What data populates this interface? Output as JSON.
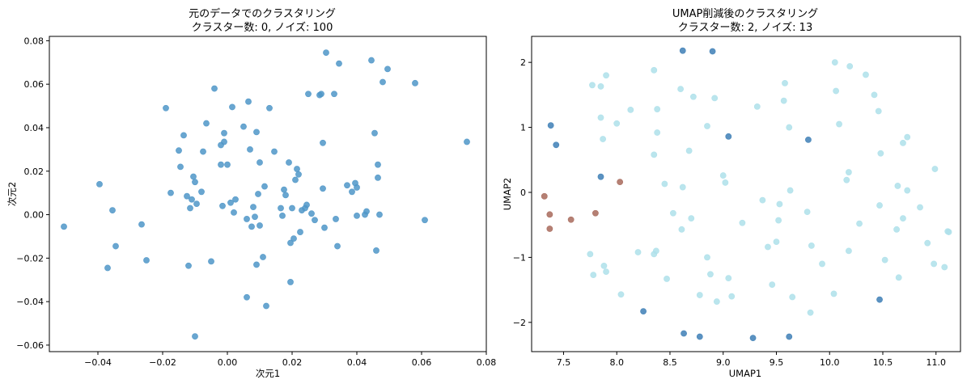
{
  "chart_data": [
    {
      "type": "scatter",
      "title": "元のデータでのクラスタリング",
      "subtitle": "クラスター数: 0, ノイズ: 100",
      "xlabel": "次元1",
      "ylabel": "次元2",
      "xlim": [
        -0.055,
        0.08
      ],
      "ylim": [
        -0.063,
        0.082
      ],
      "xticks": [
        -0.04,
        -0.02,
        0.0,
        0.02,
        0.04,
        0.06,
        0.08
      ],
      "xtick_labels": [
        "−0.04",
        "−0.02",
        "0.00",
        "0.02",
        "0.04",
        "0.06",
        "0.08"
      ],
      "yticks": [
        -0.06,
        -0.04,
        -0.02,
        0.0,
        0.02,
        0.04,
        0.06,
        0.08
      ],
      "ytick_labels": [
        "−0.06",
        "−0.04",
        "−0.02",
        "0.00",
        "0.02",
        "0.04",
        "0.06",
        "0.08"
      ],
      "grid": false,
      "color": "#4f96c8",
      "series": [
        {
          "points": [
            [
              -0.0505,
              -0.0055
            ],
            [
              -0.0395,
              0.014
            ],
            [
              -0.0355,
              0.002
            ],
            [
              -0.0345,
              -0.0145
            ],
            [
              -0.037,
              -0.0245
            ],
            [
              -0.0265,
              -0.0045
            ],
            [
              -0.025,
              -0.021
            ],
            [
              -0.019,
              0.049
            ],
            [
              -0.0175,
              0.01
            ],
            [
              -0.015,
              0.0295
            ],
            [
              -0.0145,
              0.022
            ],
            [
              -0.0135,
              0.0365
            ],
            [
              -0.0125,
              0.0085
            ],
            [
              -0.012,
              -0.0235
            ],
            [
              -0.0115,
              0.003
            ],
            [
              -0.0105,
              0.0175
            ],
            [
              -0.01,
              0.015
            ],
            [
              -0.011,
              0.007
            ],
            [
              -0.0095,
              0.005
            ],
            [
              -0.01,
              -0.056
            ],
            [
              -0.008,
              0.0105
            ],
            [
              -0.0075,
              0.029
            ],
            [
              -0.0065,
              0.042
            ],
            [
              -0.005,
              -0.0215
            ],
            [
              -0.004,
              0.058
            ],
            [
              -0.002,
              0.032
            ],
            [
              -0.002,
              0.023
            ],
            [
              -0.0015,
              0.004
            ],
            [
              -0.001,
              0.0375
            ],
            [
              -0.001,
              0.0335
            ],
            [
              0.0,
              0.023
            ],
            [
              0.001,
              0.0055
            ],
            [
              0.0015,
              0.0495
            ],
            [
              0.002,
              0.001
            ],
            [
              0.0025,
              0.007
            ],
            [
              0.005,
              0.0405
            ],
            [
              0.006,
              -0.002
            ],
            [
              0.006,
              -0.038
            ],
            [
              0.0065,
              0.052
            ],
            [
              0.007,
              0.03
            ],
            [
              0.0075,
              -0.0055
            ],
            [
              0.008,
              0.0035
            ],
            [
              0.0085,
              -0.001
            ],
            [
              0.009,
              0.038
            ],
            [
              0.009,
              -0.023
            ],
            [
              0.0095,
              0.0095
            ],
            [
              0.01,
              0.024
            ],
            [
              0.01,
              -0.005
            ],
            [
              0.011,
              -0.0195
            ],
            [
              0.0115,
              0.013
            ],
            [
              0.012,
              -0.042
            ],
            [
              0.013,
              0.049
            ],
            [
              0.0145,
              0.029
            ],
            [
              0.0165,
              0.003
            ],
            [
              0.017,
              -0.0005
            ],
            [
              0.0175,
              0.0115
            ],
            [
              0.018,
              0.009
            ],
            [
              0.019,
              0.024
            ],
            [
              0.0195,
              -0.031
            ],
            [
              0.0195,
              -0.013
            ],
            [
              0.02,
              0.003
            ],
            [
              0.0205,
              -0.011
            ],
            [
              0.021,
              0.016
            ],
            [
              0.0215,
              0.021
            ],
            [
              0.022,
              0.0185
            ],
            [
              0.0225,
              -0.008
            ],
            [
              0.023,
              0.002
            ],
            [
              0.024,
              0.003
            ],
            [
              0.0245,
              0.0045
            ],
            [
              0.025,
              0.0555
            ],
            [
              0.026,
              0.0005
            ],
            [
              0.027,
              -0.0025
            ],
            [
              0.0285,
              0.055
            ],
            [
              0.029,
              0.0555
            ],
            [
              0.0295,
              0.033
            ],
            [
              0.0295,
              0.012
            ],
            [
              0.03,
              -0.006
            ],
            [
              0.0305,
              0.0745
            ],
            [
              0.033,
              0.0555
            ],
            [
              0.0335,
              -0.002
            ],
            [
              0.034,
              -0.0145
            ],
            [
              0.0345,
              0.0695
            ],
            [
              0.037,
              0.0135
            ],
            [
              0.0385,
              0.0105
            ],
            [
              0.0395,
              0.0145
            ],
            [
              0.04,
              0.0125
            ],
            [
              0.04,
              -0.0005
            ],
            [
              0.0425,
              0.0
            ],
            [
              0.043,
              0.0015
            ],
            [
              0.0445,
              0.071
            ],
            [
              0.0455,
              0.0375
            ],
            [
              0.046,
              -0.0165
            ],
            [
              0.0465,
              0.023
            ],
            [
              0.047,
              0.0
            ],
            [
              0.048,
              0.061
            ],
            [
              0.0495,
              0.067
            ],
            [
              0.058,
              0.0605
            ],
            [
              0.061,
              -0.0025
            ],
            [
              0.074,
              0.0335
            ],
            [
              0.0465,
              0.017
            ]
          ]
        }
      ]
    },
    {
      "type": "scatter",
      "title": "UMAP削減後のクラスタリング",
      "subtitle": "クラスター数: 2, ノイズ: 13",
      "xlabel": "UMAP1",
      "ylabel": "UMAP2",
      "xlim": [
        7.2,
        11.23
      ],
      "ylim": [
        -2.45,
        2.4
      ],
      "xticks": [
        7.5,
        8.0,
        8.5,
        9.0,
        9.5,
        10.0,
        10.5,
        11.0
      ],
      "xtick_labels": [
        "7.5",
        "8.0",
        "8.5",
        "9.0",
        "9.5",
        "10.0",
        "10.5",
        "11.0"
      ],
      "yticks": [
        -2,
        -1,
        0,
        1,
        2
      ],
      "ytick_labels": [
        "−2",
        "−1",
        "0",
        "1",
        "2"
      ],
      "grid": false,
      "series": [
        {
          "color": "#aee0ea",
          "points": [
            [
              7.75,
              -0.95
            ],
            [
              7.78,
              -1.27
            ],
            [
              7.77,
              1.65
            ],
            [
              7.85,
              1.63
            ],
            [
              7.9,
              1.8
            ],
            [
              7.85,
              1.15
            ],
            [
              7.87,
              0.82
            ],
            [
              7.88,
              -1.13
            ],
            [
              7.9,
              -1.22
            ],
            [
              8.04,
              -1.57
            ],
            [
              8.13,
              1.27
            ],
            [
              8.2,
              -0.92
            ],
            [
              8.35,
              1.88
            ],
            [
              8.35,
              0.58
            ],
            [
              8.38,
              0.92
            ],
            [
              8.38,
              1.28
            ],
            [
              8.35,
              -0.95
            ],
            [
              8.37,
              -0.9
            ],
            [
              8.45,
              0.13
            ],
            [
              8.47,
              -1.33
            ],
            [
              8.53,
              -0.32
            ],
            [
              8.6,
              1.59
            ],
            [
              8.62,
              0.08
            ],
            [
              8.61,
              -0.57
            ],
            [
              8.68,
              0.64
            ],
            [
              8.7,
              -0.4
            ],
            [
              8.72,
              1.47
            ],
            [
              8.78,
              -1.58
            ],
            [
              8.85,
              1.02
            ],
            [
              8.85,
              -1.0
            ],
            [
              8.88,
              -1.26
            ],
            [
              8.92,
              1.45
            ],
            [
              8.94,
              -1.68
            ],
            [
              9.0,
              0.26
            ],
            [
              9.02,
              0.15
            ],
            [
              9.05,
              -1.32
            ],
            [
              9.08,
              -1.6
            ],
            [
              9.18,
              -0.47
            ],
            [
              9.32,
              1.32
            ],
            [
              9.37,
              -0.12
            ],
            [
              9.42,
              -0.84
            ],
            [
              9.46,
              -1.42
            ],
            [
              9.5,
              -0.76
            ],
            [
              9.53,
              -0.18
            ],
            [
              9.52,
              -0.43
            ],
            [
              9.58,
              1.68
            ],
            [
              9.57,
              1.41
            ],
            [
              9.62,
              1.0
            ],
            [
              9.63,
              0.03
            ],
            [
              9.65,
              -1.61
            ],
            [
              9.79,
              -0.3
            ],
            [
              9.83,
              -0.82
            ],
            [
              9.82,
              -1.85
            ],
            [
              9.93,
              -1.1
            ],
            [
              10.05,
              2.0
            ],
            [
              10.06,
              1.56
            ],
            [
              10.09,
              1.05
            ],
            [
              10.04,
              -1.56
            ],
            [
              10.16,
              0.19
            ],
            [
              10.18,
              0.31
            ],
            [
              10.18,
              -0.9
            ],
            [
              10.19,
              1.94
            ],
            [
              10.28,
              -0.48
            ],
            [
              10.34,
              1.81
            ],
            [
              10.42,
              1.5
            ],
            [
              10.46,
              1.25
            ],
            [
              10.47,
              -0.2
            ],
            [
              10.48,
              0.6
            ],
            [
              10.52,
              -1.04
            ],
            [
              10.63,
              -0.57
            ],
            [
              10.64,
              0.1
            ],
            [
              10.65,
              -1.31
            ],
            [
              10.69,
              0.76
            ],
            [
              10.69,
              -0.4
            ],
            [
              10.73,
              0.85
            ],
            [
              10.73,
              0.03
            ],
            [
              10.85,
              -0.23
            ],
            [
              10.92,
              -0.78
            ],
            [
              10.98,
              -1.1
            ],
            [
              10.99,
              0.36
            ],
            [
              11.08,
              -1.15
            ],
            [
              11.11,
              -0.6
            ],
            [
              11.12,
              -0.61
            ],
            [
              8.0,
              1.06
            ]
          ]
        },
        {
          "color": "#3e7fb6",
          "points": [
            [
              7.38,
              1.03
            ],
            [
              7.43,
              0.73
            ],
            [
              7.85,
              0.24
            ],
            [
              8.25,
              -1.83
            ],
            [
              8.62,
              2.18
            ],
            [
              8.63,
              -2.17
            ],
            [
              8.78,
              -2.22
            ],
            [
              8.9,
              2.17
            ],
            [
              9.05,
              0.86
            ],
            [
              9.28,
              -2.24
            ],
            [
              9.62,
              -2.22
            ],
            [
              9.8,
              0.81
            ],
            [
              10.47,
              -1.65
            ]
          ]
        },
        {
          "color": "#a86a5c",
          "points": [
            [
              7.32,
              -0.06
            ],
            [
              7.37,
              -0.34
            ],
            [
              7.37,
              -0.56
            ],
            [
              7.57,
              -0.42
            ],
            [
              7.8,
              -0.32
            ],
            [
              8.03,
              0.16
            ]
          ]
        }
      ]
    }
  ]
}
